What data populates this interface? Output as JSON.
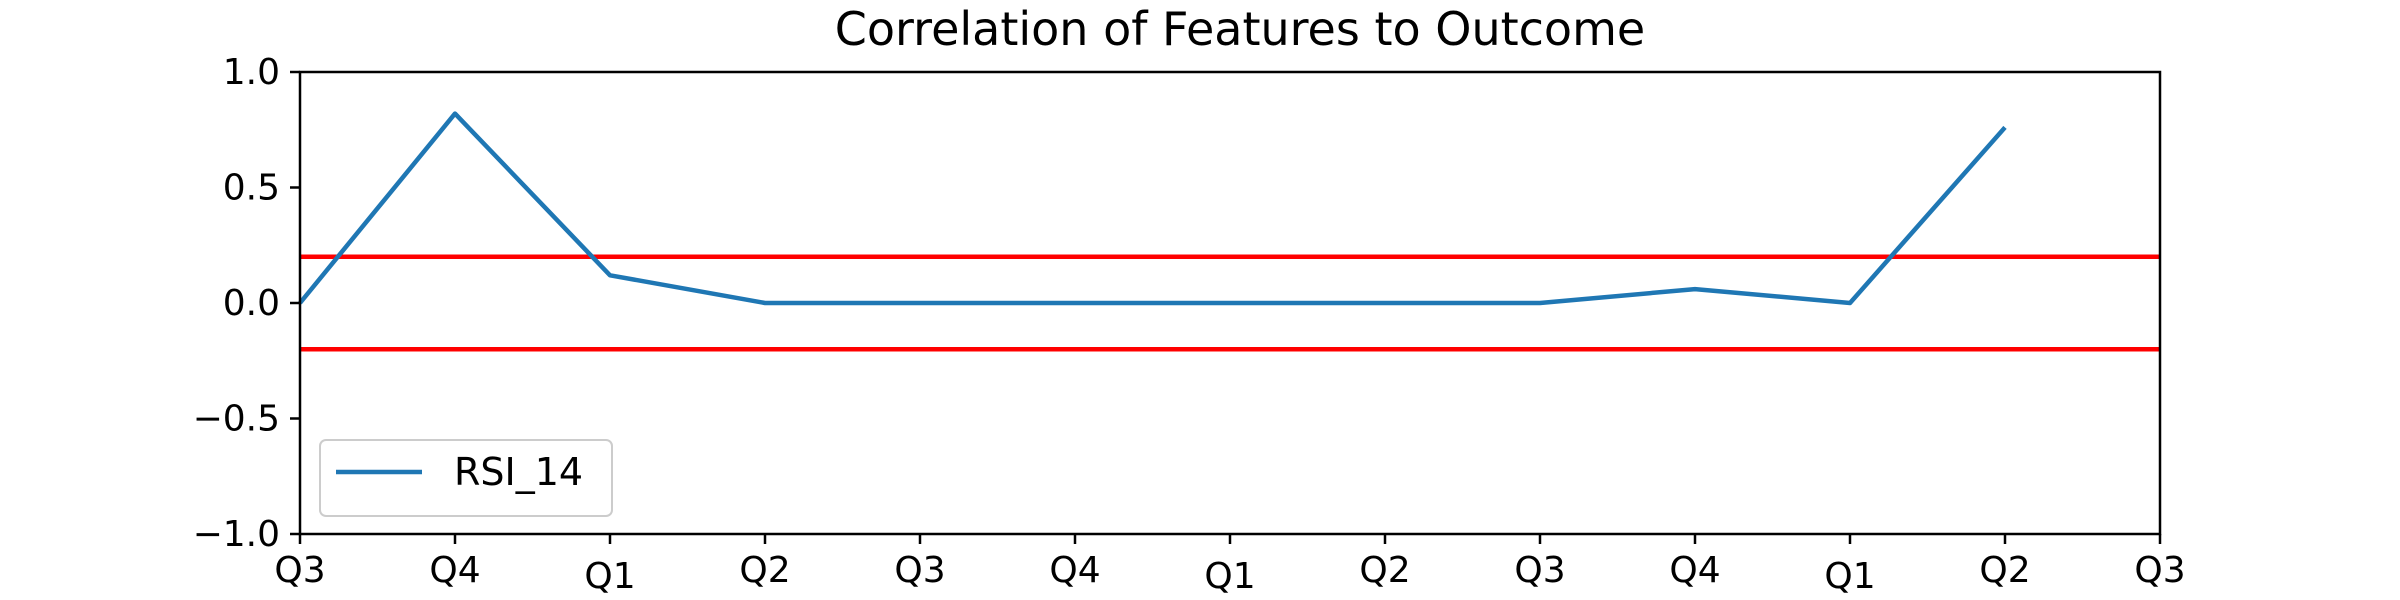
{
  "chart_data": {
    "type": "line",
    "title": "Correlation of Features to Outcome",
    "xlabel": "",
    "ylabel": "",
    "x_ticks": [
      "Q3",
      "Q4",
      "Q1",
      "Q2",
      "Q3",
      "Q4",
      "Q1",
      "Q2",
      "Q3",
      "Q4",
      "Q1",
      "Q2",
      "Q3"
    ],
    "ylim": [
      -1.0,
      1.0
    ],
    "y_ticks": [
      "1.0",
      "0.5",
      "0.0",
      "−0.5",
      "−1.0"
    ],
    "y_tick_values": [
      1.0,
      0.5,
      0.0,
      -0.5,
      -1.0
    ],
    "series": [
      {
        "name": "RSI_14",
        "color": "#1f77b4",
        "values": [
          0.0,
          0.82,
          0.12,
          0.0,
          0.0,
          0.0,
          0.0,
          0.0,
          0.0,
          0.06,
          0.0,
          0.76
        ]
      }
    ],
    "reference_lines": [
      {
        "y": 0.2,
        "color": "#ff0000"
      },
      {
        "y": -0.2,
        "color": "#ff0000"
      }
    ],
    "grid": false,
    "legend_position": "lower-left"
  }
}
